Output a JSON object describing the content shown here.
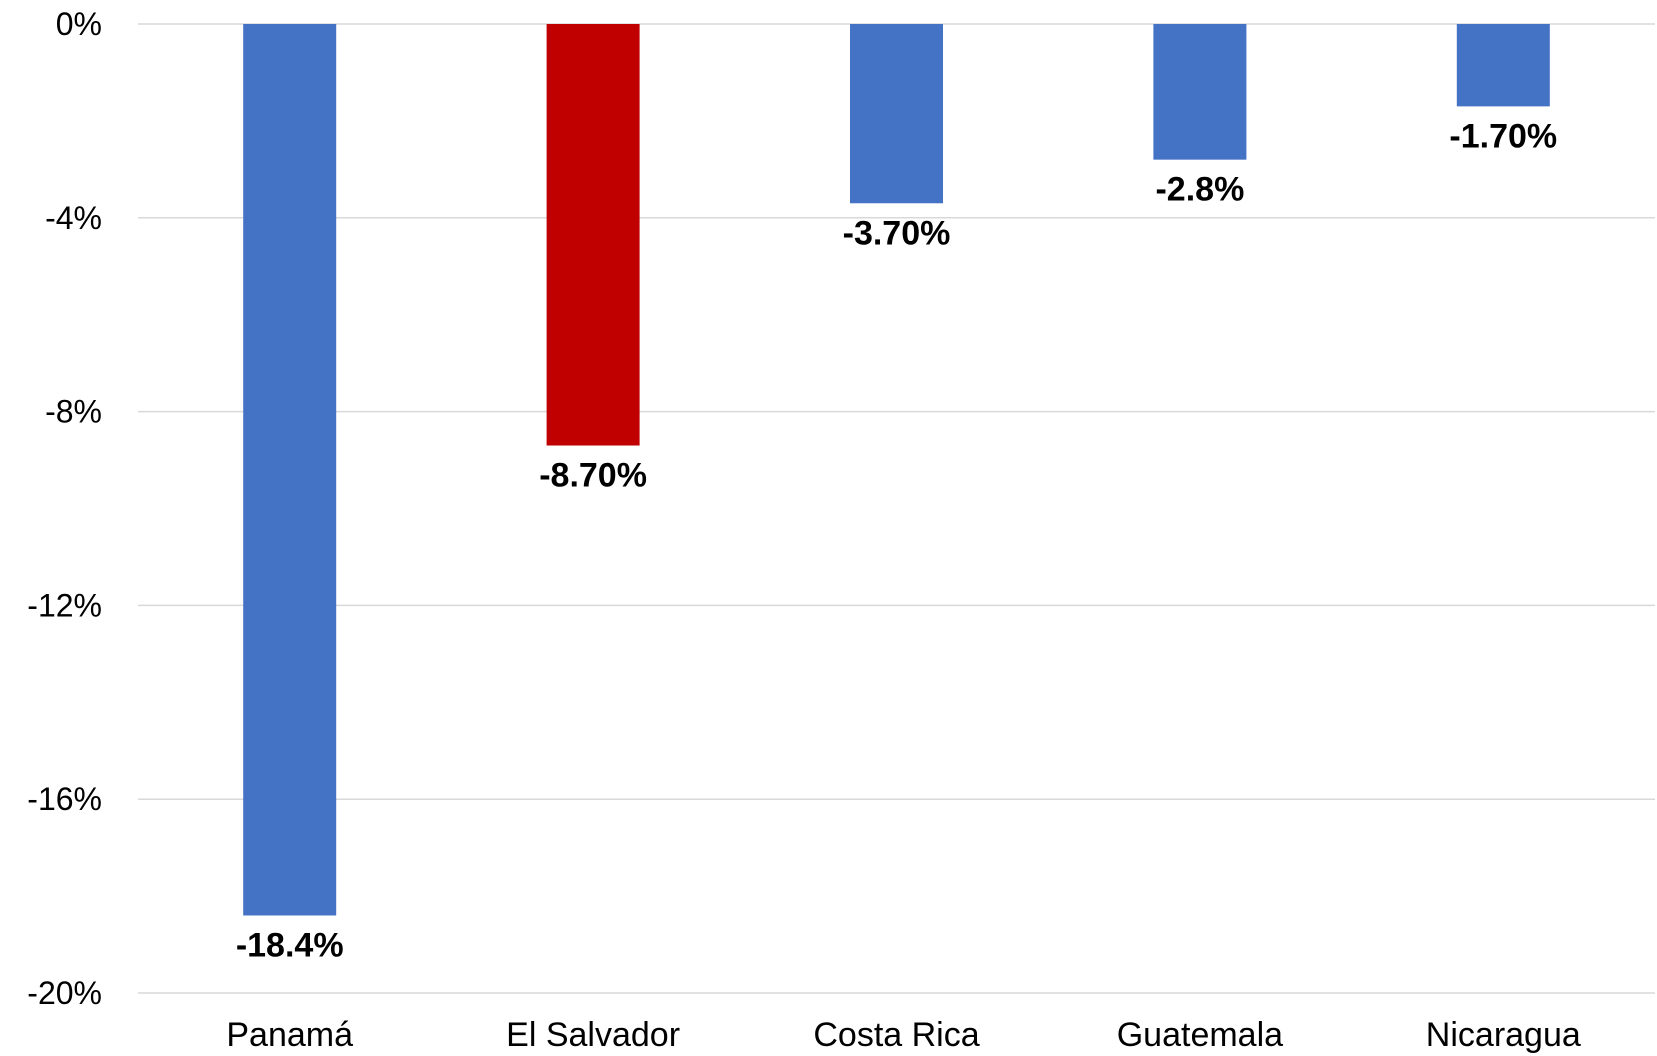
{
  "chart_data": {
    "type": "bar",
    "title": "",
    "xlabel": "",
    "ylabel": "",
    "categories": [
      "Panamá",
      "El Salvador",
      "Costa Rica",
      "Guatemala",
      "Nicaragua"
    ],
    "values": [
      -18.4,
      -8.7,
      -3.7,
      -2.8,
      -1.7
    ],
    "data_labels": [
      "-18.4%",
      "-8.70%",
      "-3.70%",
      "-2.8%",
      "-1.70%"
    ],
    "bar_colors": [
      "#4472c4",
      "#c00000",
      "#4472c4",
      "#4472c4",
      "#4472c4"
    ],
    "ylim": [
      -20,
      0
    ],
    "y_ticks": [
      0,
      -4,
      -8,
      -12,
      -16,
      -20
    ],
    "y_tick_labels": [
      "0%",
      "-4%",
      "-8%",
      "-12%",
      "-16%",
      "-20%"
    ],
    "grid": true,
    "legend": "none"
  }
}
